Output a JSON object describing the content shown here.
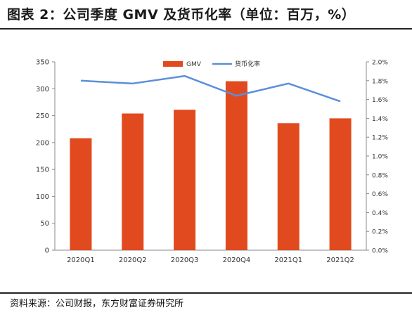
{
  "figure": {
    "title": "图表 2：公司季度 GMV 及货币化率（单位：百万，%）",
    "source": "资料来源：公司财报，东方财富证券研究所"
  },
  "colors": {
    "bar": "#E04A1E",
    "line": "#5B8FD9",
    "axis": "#888888",
    "text": "#333333"
  },
  "chart_data": {
    "type": "bar",
    "categories": [
      "2020Q1",
      "2020Q2",
      "2020Q3",
      "2020Q4",
      "2021Q1",
      "2021Q2"
    ],
    "series": [
      {
        "name": "GMV",
        "type": "bar",
        "axis": "left",
        "values": [
          208,
          254,
          261,
          314,
          236,
          245
        ]
      },
      {
        "name": "货币化率",
        "type": "line",
        "axis": "right",
        "values": [
          1.8,
          1.77,
          1.85,
          1.64,
          1.77,
          1.58
        ]
      }
    ],
    "y_left": {
      "min": 0,
      "max": 350,
      "ticks": [
        "0",
        "50",
        "100",
        "150",
        "200",
        "250",
        "300",
        "350"
      ]
    },
    "y_right": {
      "min": 0,
      "max": 2.0,
      "ticks": [
        "0.0%",
        "0.2%",
        "0.4%",
        "0.6%",
        "0.8%",
        "1.0%",
        "1.2%",
        "1.4%",
        "1.6%",
        "1.8%",
        "2.0%"
      ]
    },
    "legend": {
      "position": "top-center",
      "items": [
        "GMV",
        "货币化率"
      ]
    },
    "grid": false
  }
}
